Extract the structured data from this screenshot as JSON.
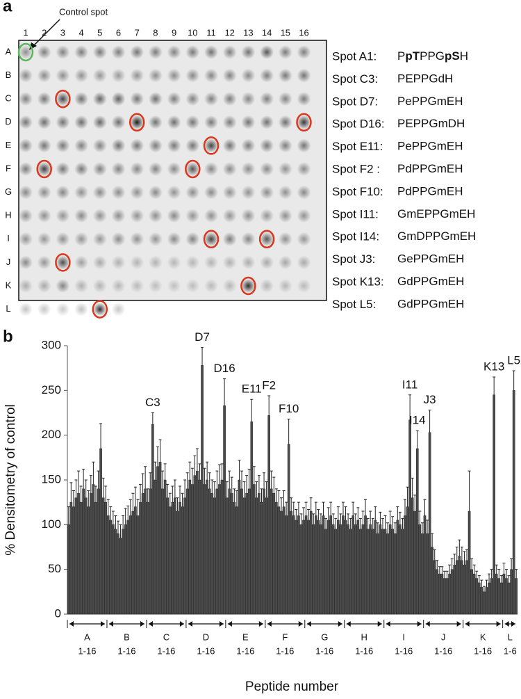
{
  "panel_a": {
    "label": "a",
    "annotation": "Control spot",
    "column_labels": [
      "1",
      "2",
      "3",
      "4",
      "5",
      "6",
      "7",
      "8",
      "9",
      "10",
      "11",
      "12",
      "13",
      "14",
      "15",
      "16"
    ],
    "row_labels": [
      "A",
      "B",
      "C",
      "D",
      "E",
      "F",
      "G",
      "H",
      "I",
      "J",
      "K",
      "L"
    ],
    "control_circle_color": "#5cb85c",
    "circle_color": "#d9381e",
    "spots": [
      {
        "name": "Spot A1:",
        "sequence": [
          {
            "text": "P"
          },
          {
            "text": "pT",
            "bold": true
          },
          {
            "text": "PPG"
          },
          {
            "text": "pS",
            "bold": true
          },
          {
            "text": "H"
          }
        ]
      },
      {
        "name": "Spot C3:",
        "sequence": [
          {
            "text": "PEPPGdH"
          }
        ]
      },
      {
        "name": "Spot D7:",
        "sequence": [
          {
            "text": "PePPGmEH"
          }
        ]
      },
      {
        "name": "Spot D16:",
        "sequence": [
          {
            "text": "PEPPGmDH"
          }
        ]
      },
      {
        "name": "Spot E11:",
        "sequence": [
          {
            "text": "PePPGmEH"
          }
        ]
      },
      {
        "name": "Spot F2 :",
        "sequence": [
          {
            "text": "PdPPGmEH"
          }
        ]
      },
      {
        "name": "Spot F10:",
        "sequence": [
          {
            "text": "PdPPGmEH"
          }
        ]
      },
      {
        "name": "Spot I11:",
        "sequence": [
          {
            "text": "GmEPPGmEH"
          }
        ]
      },
      {
        "name": "Spot I14:",
        "sequence": [
          {
            "text": "GmDPPGmEH"
          }
        ]
      },
      {
        "name": "Spot J3:",
        "sequence": [
          {
            "text": "GePPGmEH"
          }
        ]
      },
      {
        "name": "Spot K13:",
        "sequence": [
          {
            "text": "GdPPGmEH"
          }
        ]
      },
      {
        "name": "Spot L5:",
        "sequence": [
          {
            "text": "GdPPGmEH"
          }
        ]
      }
    ]
  },
  "chart_data": {
    "type": "bar",
    "label": "b",
    "y_label": "% Densitometry of control",
    "x_label": "Peptide number",
    "ylim": [
      0,
      300
    ],
    "yticks": [
      0,
      50,
      100,
      150,
      200,
      250,
      300
    ],
    "color": "#4a4a4a",
    "error_color": "#222222",
    "groups": [
      {
        "name": "A",
        "range": "1-16"
      },
      {
        "name": "B",
        "range": "1-16"
      },
      {
        "name": "C",
        "range": "1-16"
      },
      {
        "name": "D",
        "range": "1-16"
      },
      {
        "name": "E",
        "range": "1-16"
      },
      {
        "name": "F",
        "range": "1-16"
      },
      {
        "name": "G",
        "range": "1-16"
      },
      {
        "name": "H",
        "range": "1-16"
      },
      {
        "name": "I",
        "range": "1-16"
      },
      {
        "name": "J",
        "range": "1-16"
      },
      {
        "name": "K",
        "range": "1-16"
      },
      {
        "name": "L",
        "range": "1-6"
      }
    ],
    "annotations": [
      "C3",
      "D7",
      "D16",
      "E11",
      "F2",
      "F10",
      "I11",
      "I14",
      "J3",
      "K13",
      "L5"
    ],
    "values": [
      100,
      125,
      120,
      130,
      135,
      125,
      140,
      130,
      120,
      135,
      145,
      125,
      140,
      185,
      130,
      125,
      110,
      105,
      100,
      95,
      90,
      85,
      95,
      100,
      105,
      110,
      115,
      120,
      110,
      125,
      135,
      140,
      125,
      140,
      212,
      150,
      165,
      170,
      140,
      150,
      130,
      120,
      125,
      130,
      115,
      125,
      120,
      130,
      140,
      150,
      145,
      155,
      160,
      150,
      278,
      145,
      150,
      140,
      135,
      130,
      140,
      145,
      150,
      233,
      130,
      140,
      135,
      125,
      120,
      150,
      140,
      130,
      135,
      140,
      215,
      145,
      130,
      135,
      125,
      140,
      130,
      222,
      140,
      135,
      125,
      120,
      115,
      120,
      110,
      190,
      115,
      110,
      105,
      110,
      100,
      105,
      110,
      105,
      115,
      100,
      110,
      105,
      100,
      110,
      95,
      105,
      110,
      100,
      95,
      105,
      100,
      110,
      105,
      100,
      95,
      110,
      100,
      105,
      95,
      100,
      110,
      95,
      100,
      95,
      105,
      90,
      100,
      95,
      95,
      90,
      100,
      95,
      90,
      105,
      100,
      95,
      110,
      120,
      217,
      130,
      115,
      185,
      100,
      90,
      110,
      90,
      203,
      75,
      60,
      50,
      45,
      45,
      40,
      40,
      45,
      50,
      55,
      60,
      65,
      60,
      55,
      60,
      115,
      50,
      45,
      40,
      35,
      30,
      25,
      30,
      35,
      40,
      245,
      45,
      40,
      35,
      45,
      40,
      35,
      50,
      250,
      40
    ],
    "errors": [
      20,
      22,
      18,
      20,
      25,
      18,
      22,
      20,
      18,
      20,
      25,
      18,
      20,
      28,
      22,
      18,
      18,
      15,
      15,
      15,
      14,
      15,
      15,
      18,
      16,
      18,
      20,
      22,
      18,
      20,
      22,
      25,
      15,
      18,
      13,
      20,
      22,
      25,
      20,
      18,
      15,
      15,
      18,
      20,
      15,
      18,
      15,
      20,
      18,
      20,
      18,
      22,
      25,
      18,
      20,
      18,
      20,
      18,
      15,
      18,
      20,
      22,
      18,
      30,
      18,
      20,
      18,
      15,
      18,
      22,
      20,
      18,
      20,
      22,
      25,
      20,
      18,
      20,
      15,
      18,
      18,
      22,
      20,
      18,
      15,
      18,
      15,
      18,
      15,
      28,
      15,
      15,
      12,
      15,
      12,
      14,
      15,
      12,
      15,
      12,
      15,
      12,
      12,
      15,
      12,
      14,
      15,
      12,
      12,
      15,
      12,
      15,
      15,
      12,
      12,
      15,
      12,
      14,
      12,
      15,
      18,
      12,
      15,
      12,
      15,
      12,
      14,
      12,
      15,
      12,
      15,
      14,
      12,
      15,
      14,
      12,
      18,
      22,
      28,
      22,
      18,
      20,
      15,
      12,
      18,
      15,
      25,
      15,
      12,
      10,
      8,
      8,
      8,
      8,
      10,
      12,
      12,
      15,
      18,
      15,
      15,
      12,
      45,
      12,
      10,
      8,
      8,
      8,
      6,
      8,
      10,
      10,
      20,
      10,
      10,
      8,
      12,
      10,
      8,
      12,
      22,
      10
    ]
  }
}
